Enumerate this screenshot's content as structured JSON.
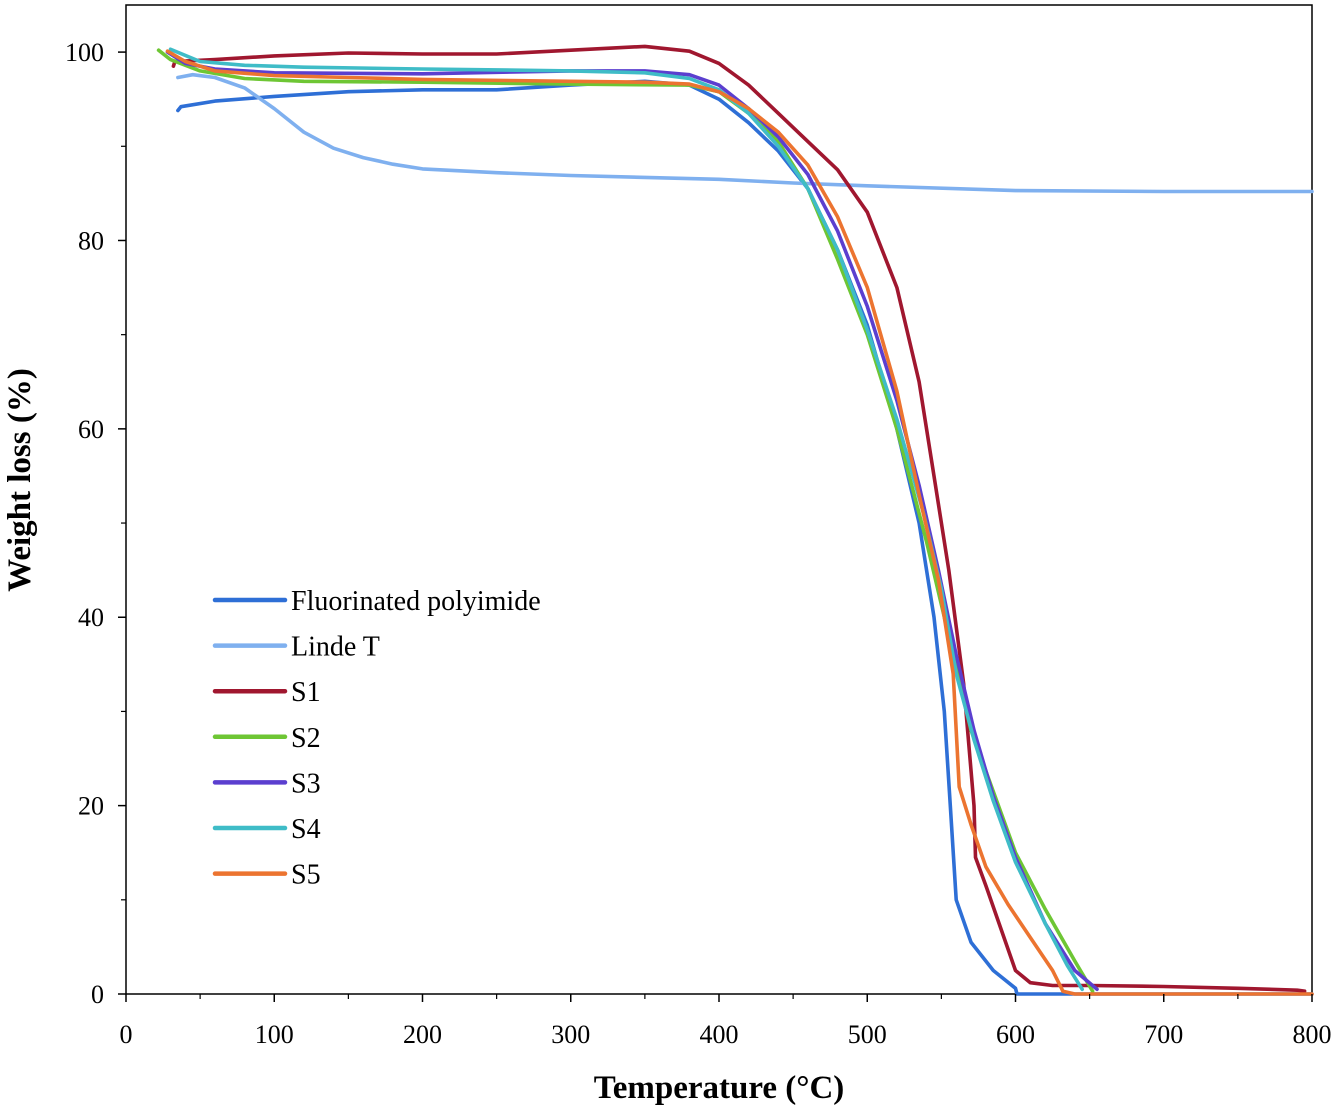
{
  "chart_data": {
    "type": "line",
    "title": "",
    "xlabel": "Temperature (°C)",
    "ylabel": "Weight loss (%)",
    "xlim": [
      0,
      800
    ],
    "ylim": [
      0,
      105
    ],
    "x_ticks": [
      0,
      100,
      200,
      300,
      400,
      500,
      600,
      700,
      800
    ],
    "y_ticks": [
      0,
      20,
      40,
      60,
      80,
      100
    ],
    "grid": false,
    "legend_position": "center-left",
    "series": [
      {
        "name": "Fluorinated polyimide",
        "color": "#2e6fd6",
        "points": [
          [
            35,
            93.8
          ],
          [
            37,
            94.2
          ],
          [
            60,
            94.8
          ],
          [
            100,
            95.3
          ],
          [
            150,
            95.8
          ],
          [
            200,
            96.0
          ],
          [
            250,
            96.0
          ],
          [
            300,
            96.5
          ],
          [
            350,
            96.9
          ],
          [
            380,
            96.5
          ],
          [
            400,
            95.0
          ],
          [
            420,
            92.5
          ],
          [
            440,
            89.5
          ],
          [
            460,
            85.5
          ],
          [
            480,
            79.0
          ],
          [
            500,
            71.0
          ],
          [
            520,
            60.0
          ],
          [
            535,
            50.0
          ],
          [
            545,
            40.0
          ],
          [
            552,
            30.0
          ],
          [
            556,
            20.0
          ],
          [
            560,
            10.0
          ],
          [
            570,
            5.5
          ],
          [
            585,
            2.5
          ],
          [
            600,
            0.6
          ],
          [
            601,
            0.0
          ],
          [
            800,
            0.0
          ]
        ]
      },
      {
        "name": "Linde T",
        "color": "#7fb0ef",
        "points": [
          [
            35,
            97.3
          ],
          [
            45,
            97.6
          ],
          [
            60,
            97.3
          ],
          [
            80,
            96.2
          ],
          [
            100,
            94.0
          ],
          [
            120,
            91.5
          ],
          [
            140,
            89.8
          ],
          [
            160,
            88.8
          ],
          [
            180,
            88.1
          ],
          [
            200,
            87.6
          ],
          [
            250,
            87.2
          ],
          [
            300,
            86.9
          ],
          [
            350,
            86.7
          ],
          [
            400,
            86.5
          ],
          [
            450,
            86.1
          ],
          [
            500,
            85.8
          ],
          [
            600,
            85.3
          ],
          [
            700,
            85.2
          ],
          [
            800,
            85.2
          ]
        ]
      },
      {
        "name": "S1",
        "color": "#a0172f",
        "points": [
          [
            32,
            98.5
          ],
          [
            33,
            99.0
          ],
          [
            60,
            99.2
          ],
          [
            100,
            99.6
          ],
          [
            150,
            99.9
          ],
          [
            200,
            99.8
          ],
          [
            250,
            99.8
          ],
          [
            300,
            100.2
          ],
          [
            350,
            100.6
          ],
          [
            380,
            100.1
          ],
          [
            400,
            98.8
          ],
          [
            420,
            96.5
          ],
          [
            440,
            93.5
          ],
          [
            460,
            90.5
          ],
          [
            480,
            87.5
          ],
          [
            500,
            83.0
          ],
          [
            520,
            75.0
          ],
          [
            535,
            65.0
          ],
          [
            545,
            55.0
          ],
          [
            555,
            45.0
          ],
          [
            565,
            33.0
          ],
          [
            572,
            20.0
          ],
          [
            573,
            14.5
          ],
          [
            580,
            11.5
          ],
          [
            590,
            7.0
          ],
          [
            600,
            2.5
          ],
          [
            610,
            1.2
          ],
          [
            625,
            0.9
          ],
          [
            650,
            0.9
          ],
          [
            700,
            0.8
          ],
          [
            750,
            0.6
          ],
          [
            790,
            0.4
          ],
          [
            795,
            0.3
          ]
        ]
      },
      {
        "name": "S2",
        "color": "#6ec634",
        "points": [
          [
            22,
            100.2
          ],
          [
            30,
            99.2
          ],
          [
            50,
            98.0
          ],
          [
            80,
            97.2
          ],
          [
            120,
            96.9
          ],
          [
            200,
            96.8
          ],
          [
            300,
            96.6
          ],
          [
            380,
            96.5
          ],
          [
            400,
            95.8
          ],
          [
            420,
            93.5
          ],
          [
            440,
            90.5
          ],
          [
            460,
            85.5
          ],
          [
            480,
            78.0
          ],
          [
            500,
            70.0
          ],
          [
            520,
            60.0
          ],
          [
            540,
            48.0
          ],
          [
            555,
            38.0
          ],
          [
            570,
            28.0
          ],
          [
            585,
            21.5
          ],
          [
            600,
            15.0
          ],
          [
            620,
            9.0
          ],
          [
            640,
            3.5
          ],
          [
            652,
            0.3
          ]
        ]
      },
      {
        "name": "S3",
        "color": "#5b3fcf",
        "points": [
          [
            28,
            100.0
          ],
          [
            40,
            98.8
          ],
          [
            60,
            98.2
          ],
          [
            100,
            97.8
          ],
          [
            200,
            97.7
          ],
          [
            300,
            98.0
          ],
          [
            350,
            98.0
          ],
          [
            380,
            97.6
          ],
          [
            400,
            96.5
          ],
          [
            420,
            94.0
          ],
          [
            440,
            91.0
          ],
          [
            460,
            87.0
          ],
          [
            480,
            81.0
          ],
          [
            500,
            73.0
          ],
          [
            520,
            63.0
          ],
          [
            535,
            54.0
          ],
          [
            548,
            45.0
          ],
          [
            560,
            36.0
          ],
          [
            572,
            28.0
          ],
          [
            585,
            21.0
          ],
          [
            600,
            14.5
          ],
          [
            620,
            7.5
          ],
          [
            640,
            2.5
          ],
          [
            655,
            0.5
          ]
        ]
      },
      {
        "name": "S4",
        "color": "#3fbcc7",
        "points": [
          [
            30,
            100.3
          ],
          [
            50,
            99.0
          ],
          [
            80,
            98.6
          ],
          [
            120,
            98.4
          ],
          [
            200,
            98.2
          ],
          [
            300,
            98.0
          ],
          [
            350,
            97.8
          ],
          [
            380,
            97.2
          ],
          [
            400,
            96.0
          ],
          [
            420,
            93.5
          ],
          [
            440,
            90.0
          ],
          [
            460,
            85.5
          ],
          [
            480,
            79.0
          ],
          [
            500,
            70.5
          ],
          [
            520,
            61.0
          ],
          [
            538,
            51.0
          ],
          [
            550,
            43.0
          ],
          [
            560,
            34.0
          ],
          [
            572,
            27.0
          ],
          [
            585,
            20.5
          ],
          [
            600,
            14.0
          ],
          [
            620,
            7.5
          ],
          [
            635,
            3.0
          ],
          [
            645,
            0.5
          ]
        ]
      },
      {
        "name": "S5",
        "color": "#ec7430",
        "points": [
          [
            28,
            100.1
          ],
          [
            40,
            99.0
          ],
          [
            60,
            98.0
          ],
          [
            100,
            97.5
          ],
          [
            150,
            97.3
          ],
          [
            200,
            97.1
          ],
          [
            300,
            96.9
          ],
          [
            350,
            96.8
          ],
          [
            380,
            96.6
          ],
          [
            400,
            95.8
          ],
          [
            420,
            94.0
          ],
          [
            440,
            91.5
          ],
          [
            460,
            88.0
          ],
          [
            480,
            82.5
          ],
          [
            500,
            75.0
          ],
          [
            520,
            64.0
          ],
          [
            535,
            53.0
          ],
          [
            548,
            44.0
          ],
          [
            558,
            34.0
          ],
          [
            562,
            22.0
          ],
          [
            570,
            18.0
          ],
          [
            580,
            13.5
          ],
          [
            595,
            9.5
          ],
          [
            610,
            6.0
          ],
          [
            625,
            2.5
          ],
          [
            632,
            0.3
          ],
          [
            640,
            0.0
          ],
          [
            800,
            0.0
          ]
        ]
      }
    ]
  }
}
